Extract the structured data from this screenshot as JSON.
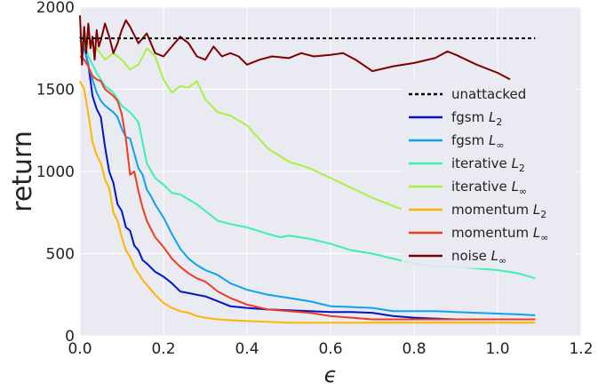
{
  "chart_data": {
    "type": "line",
    "xlabel": "ϵ",
    "ylabel": "return",
    "xlim": [
      0.0,
      1.2
    ],
    "ylim": [
      0,
      2000
    ],
    "xticks": [
      "0.0",
      "0.2",
      "0.4",
      "0.6",
      "0.8",
      "1.0",
      "1.2"
    ],
    "yticks": [
      "0",
      "500",
      "1000",
      "1500",
      "2000"
    ],
    "grid": true,
    "legend_position": "right",
    "series": [
      {
        "name": "unattacked",
        "base": "unattacked",
        "sub": "",
        "color": "#000000",
        "dash": true,
        "x": [
          0.0,
          1.09
        ],
        "y": [
          1810,
          1810
        ]
      },
      {
        "name": "fgsm L2",
        "base": "fgsm ",
        "sub": "2",
        "color": "#0014c8",
        "dash": false,
        "x": [
          0.0,
          0.01,
          0.02,
          0.03,
          0.04,
          0.05,
          0.06,
          0.07,
          0.08,
          0.09,
          0.1,
          0.11,
          0.12,
          0.13,
          0.14,
          0.15,
          0.16,
          0.18,
          0.2,
          0.22,
          0.24,
          0.26,
          0.28,
          0.3,
          0.33,
          0.36,
          0.4,
          0.45,
          0.5,
          0.55,
          0.6,
          0.65,
          0.7,
          0.75,
          0.8,
          0.85,
          0.9,
          0.95,
          1.0,
          1.05,
          1.09
        ],
        "y": [
          1820,
          1750,
          1650,
          1460,
          1380,
          1330,
          1150,
          1000,
          930,
          800,
          760,
          660,
          640,
          550,
          520,
          460,
          440,
          390,
          360,
          320,
          270,
          260,
          250,
          240,
          210,
          180,
          170,
          160,
          155,
          150,
          145,
          145,
          140,
          120,
          110,
          105,
          100,
          100,
          100,
          100,
          100
        ]
      },
      {
        "name": "fgsm L∞",
        "base": "fgsm ",
        "sub": "∞",
        "color": "#0fa0f0",
        "dash": false,
        "x": [
          0.0,
          0.01,
          0.02,
          0.03,
          0.04,
          0.05,
          0.06,
          0.07,
          0.08,
          0.09,
          0.1,
          0.11,
          0.12,
          0.13,
          0.14,
          0.15,
          0.16,
          0.17,
          0.18,
          0.2,
          0.22,
          0.24,
          0.26,
          0.28,
          0.3,
          0.33,
          0.36,
          0.4,
          0.45,
          0.5,
          0.55,
          0.6,
          0.65,
          0.7,
          0.75,
          0.8,
          0.85,
          0.9,
          0.95,
          1.0,
          1.05,
          1.09
        ],
        "y": [
          1800,
          1750,
          1640,
          1560,
          1480,
          1430,
          1400,
          1380,
          1360,
          1330,
          1260,
          1210,
          1200,
          1110,
          1020,
          980,
          890,
          850,
          800,
          720,
          620,
          530,
          470,
          430,
          400,
          370,
          320,
          280,
          250,
          230,
          210,
          180,
          175,
          170,
          150,
          150,
          150,
          145,
          140,
          135,
          130,
          125
        ]
      },
      {
        "name": "iterative L2",
        "base": "iterative ",
        "sub": "2",
        "color": "#3cf0b4",
        "dash": false,
        "x": [
          0.0,
          0.02,
          0.04,
          0.06,
          0.08,
          0.1,
          0.12,
          0.14,
          0.16,
          0.18,
          0.2,
          0.22,
          0.24,
          0.26,
          0.28,
          0.3,
          0.33,
          0.36,
          0.4,
          0.45,
          0.48,
          0.5,
          0.55,
          0.6,
          0.65,
          0.7,
          0.75,
          0.8,
          0.85,
          0.9,
          0.95,
          1.0,
          1.05,
          1.09
        ],
        "y": [
          1850,
          1700,
          1600,
          1520,
          1480,
          1400,
          1360,
          1300,
          1050,
          960,
          920,
          870,
          860,
          830,
          800,
          760,
          700,
          680,
          660,
          620,
          600,
          610,
          590,
          560,
          520,
          500,
          470,
          440,
          420,
          420,
          410,
          400,
          380,
          350
        ]
      },
      {
        "name": "iterative L∞",
        "base": "iterative ",
        "sub": "∞",
        "color": "#aaf044",
        "dash": false,
        "x": [
          0.0,
          0.02,
          0.04,
          0.06,
          0.08,
          0.1,
          0.12,
          0.14,
          0.16,
          0.18,
          0.2,
          0.22,
          0.24,
          0.26,
          0.28,
          0.3,
          0.33,
          0.36,
          0.4,
          0.45,
          0.5,
          0.55,
          0.6,
          0.65,
          0.7,
          0.75,
          0.77
        ],
        "y": [
          1800,
          1780,
          1750,
          1680,
          1720,
          1680,
          1620,
          1650,
          1750,
          1700,
          1560,
          1480,
          1520,
          1510,
          1550,
          1440,
          1360,
          1340,
          1280,
          1140,
          1060,
          1020,
          960,
          900,
          840,
          790,
          770
        ]
      },
      {
        "name": "momentum L2",
        "base": "momentum ",
        "sub": "2",
        "color": "#ffb400",
        "dash": false,
        "x": [
          0.0,
          0.01,
          0.02,
          0.03,
          0.04,
          0.05,
          0.06,
          0.07,
          0.08,
          0.09,
          0.1,
          0.11,
          0.12,
          0.13,
          0.14,
          0.15,
          0.16,
          0.18,
          0.2,
          0.22,
          0.24,
          0.26,
          0.28,
          0.3,
          0.33,
          0.36,
          0.4,
          0.45,
          0.5,
          0.55,
          0.6,
          0.65,
          0.7,
          0.75,
          0.8,
          0.85,
          0.9,
          0.95,
          1.0,
          1.05,
          1.09
        ],
        "y": [
          1550,
          1500,
          1350,
          1180,
          1100,
          1050,
          950,
          900,
          750,
          700,
          600,
          520,
          480,
          420,
          380,
          340,
          310,
          250,
          200,
          170,
          150,
          140,
          120,
          110,
          100,
          95,
          90,
          85,
          80,
          80,
          80,
          80,
          80,
          80,
          80,
          80,
          80,
          80,
          80,
          80,
          80
        ]
      },
      {
        "name": "momentum L∞",
        "base": "momentum ",
        "sub": "∞",
        "color": "#f03c1e",
        "dash": false,
        "x": [
          0.0,
          0.01,
          0.02,
          0.03,
          0.04,
          0.05,
          0.06,
          0.07,
          0.08,
          0.09,
          0.1,
          0.11,
          0.12,
          0.13,
          0.14,
          0.15,
          0.16,
          0.18,
          0.2,
          0.22,
          0.24,
          0.26,
          0.28,
          0.3,
          0.33,
          0.36,
          0.4,
          0.45,
          0.5,
          0.55,
          0.6,
          0.65,
          0.7,
          0.75,
          0.8,
          0.85,
          0.9,
          0.95,
          1.0,
          1.05,
          1.09
        ],
        "y": [
          1700,
          1680,
          1640,
          1580,
          1560,
          1550,
          1500,
          1480,
          1460,
          1430,
          1350,
          1200,
          980,
          1000,
          880,
          780,
          700,
          600,
          540,
          470,
          420,
          380,
          350,
          330,
          270,
          230,
          190,
          160,
          150,
          140,
          120,
          110,
          100,
          100,
          100,
          100,
          100,
          100,
          100,
          100,
          100
        ]
      },
      {
        "name": "noise L∞",
        "base": "noise ",
        "sub": "∞",
        "color": "#7f0000",
        "dash": false,
        "x": [
          0.0,
          0.005,
          0.01,
          0.015,
          0.02,
          0.025,
          0.03,
          0.035,
          0.04,
          0.045,
          0.05,
          0.06,
          0.07,
          0.08,
          0.09,
          0.1,
          0.11,
          0.12,
          0.14,
          0.16,
          0.18,
          0.2,
          0.22,
          0.24,
          0.26,
          0.28,
          0.3,
          0.32,
          0.34,
          0.36,
          0.38,
          0.4,
          0.43,
          0.46,
          0.5,
          0.53,
          0.56,
          0.6,
          0.63,
          0.66,
          0.7,
          0.75,
          0.8,
          0.85,
          0.88,
          0.9,
          0.95,
          1.0,
          1.03
        ],
        "y": [
          1950,
          1650,
          1880,
          1720,
          1900,
          1750,
          1820,
          1680,
          1860,
          1760,
          1800,
          1900,
          1820,
          1720,
          1780,
          1860,
          1920,
          1880,
          1780,
          1840,
          1720,
          1700,
          1760,
          1820,
          1780,
          1700,
          1680,
          1760,
          1700,
          1720,
          1700,
          1650,
          1680,
          1700,
          1690,
          1720,
          1700,
          1710,
          1720,
          1680,
          1610,
          1640,
          1660,
          1690,
          1730,
          1710,
          1650,
          1600,
          1560
        ]
      }
    ]
  }
}
